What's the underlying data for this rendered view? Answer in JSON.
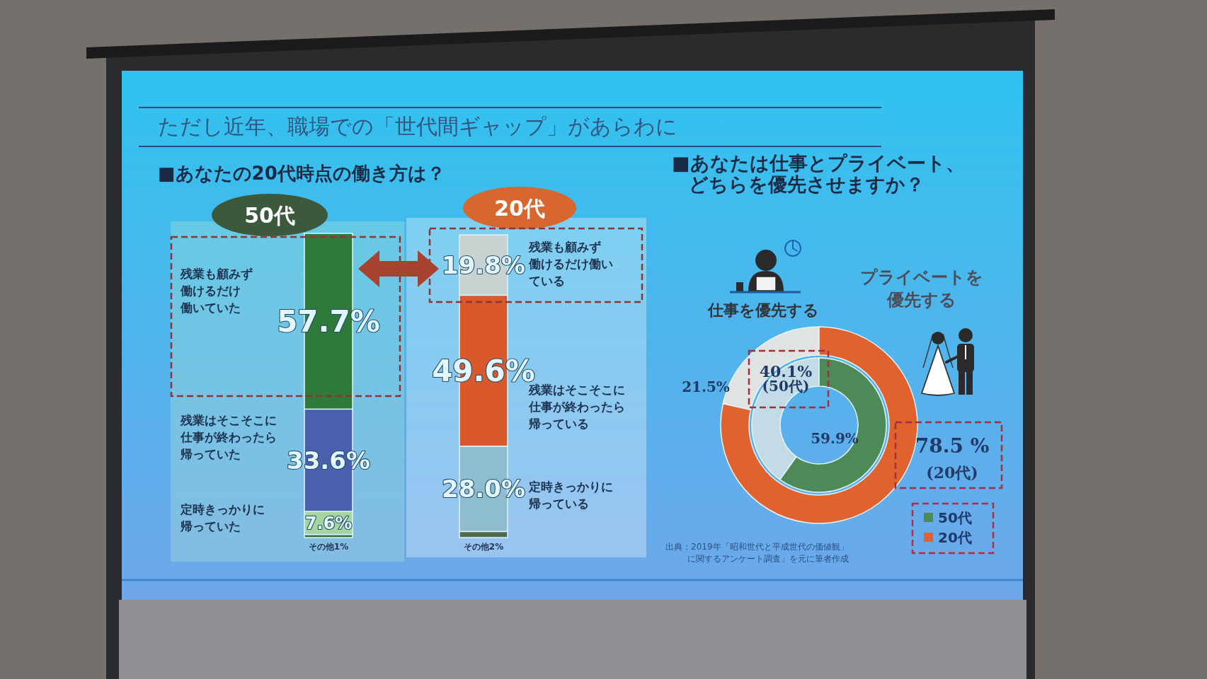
{
  "chart_data": [
    {
      "type": "bar",
      "title": "ただし近年、職場での「世代間ギャップ」があらわに",
      "subtitle": "■あなたの20代時点の働き方は？",
      "categories": [
        "50代",
        "20代"
      ],
      "stacked": true,
      "series": [
        {
          "values": [
            1,
            2
          ],
          "colors": [
            "#2f6a3a",
            "#4d6a4f"
          ],
          "value_labels": [
            "その他1%",
            "その他2%"
          ]
        },
        {
          "values": [
            7.6,
            28.0
          ],
          "colors": [
            "#a3d69d",
            "#8fbdd0"
          ],
          "value_labels": [
            "7.6%",
            "28.0%"
          ]
        },
        {
          "values": [
            33.6,
            49.6
          ],
          "colors": [
            "#4c5fae",
            "#d9582c"
          ],
          "value_labels": [
            "33.6%",
            "49.6%"
          ]
        },
        {
          "values": [
            57.7,
            19.8
          ],
          "colors": [
            "#2f7a3b",
            "#c8d2d0"
          ],
          "value_labels": [
            "57.7%",
            "19.8%"
          ]
        }
      ],
      "annotations": [
        "残業も顧みず働けるだけ働いていた",
        "残業はそこそこに仕事が終わったら帰っていた",
        "定時きっかりに帰っていた",
        "残業も顧みず働けるだけ働いている",
        "残業はそこそこに仕事が終わったら帰っている",
        "定時きっかりに帰っている"
      ]
    },
    {
      "type": "donut",
      "title": "■あなたは仕事とプライベート、どちらを優先させますか？",
      "categories": [
        "仕事を優先する",
        "プライベートを優先する"
      ],
      "series": [
        {
          "name": "50代",
          "color": "#4e8a57",
          "colors": [
            "#c3dbe6",
            "#4e8a57"
          ],
          "values": [
            40.1,
            59.9
          ],
          "value_labels": [
            "40.1%",
            "59.9%"
          ]
        },
        {
          "name": "20代",
          "color": "#e0632f",
          "colors": [
            "#dfe3e2",
            "#e0632f"
          ],
          "values": [
            21.5,
            78.5
          ],
          "value_labels": [
            "21.5%",
            "78.5 %"
          ]
        }
      ],
      "legend": "bottom right",
      "annotations": [
        "(50代)",
        "(20代)",
        "出典：2019年「昭和世代と平成世代の価値観」に関するアンケート調査」を元に筆者作成"
      ]
    }
  ]
}
